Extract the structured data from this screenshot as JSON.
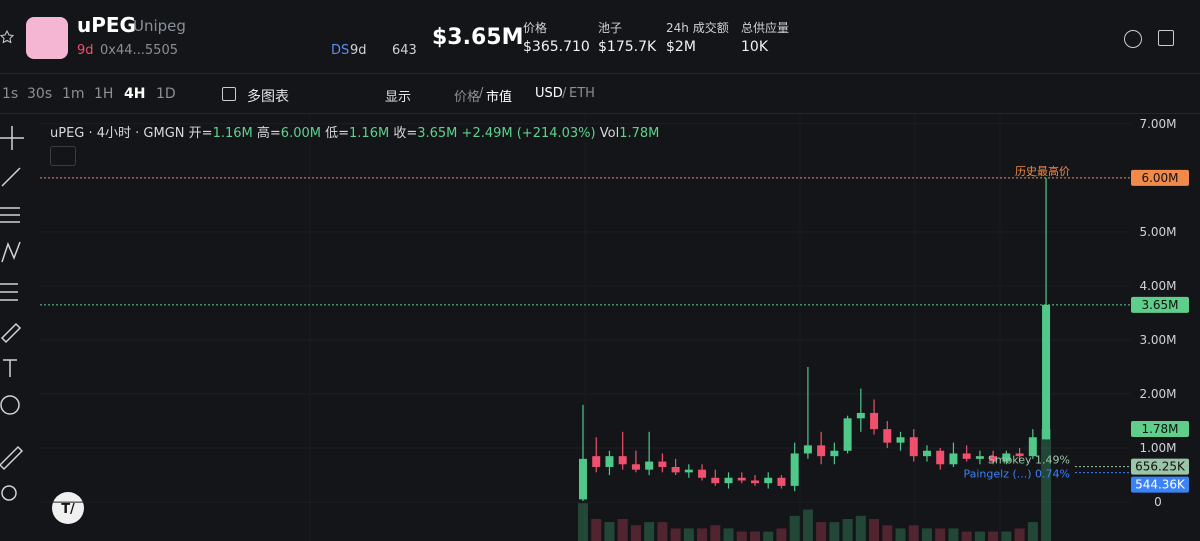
{
  "header": {
    "symbol": "uPEG",
    "name": "Unipeg",
    "age": "9d",
    "address": "0x44...5505",
    "ds_label": "DS",
    "ds_age": "9d",
    "views": "643",
    "market_cap": "$3.65M",
    "stats": [
      {
        "label": "价格",
        "value": "$365.710"
      },
      {
        "label": "池子",
        "value": "$175.7K"
      },
      {
        "label": "24h 成交额",
        "value": "$2M"
      },
      {
        "label": "总供应量",
        "value": "10K"
      }
    ]
  },
  "toolbar": {
    "intervals": [
      "1s",
      "30s",
      "1m",
      "1H",
      "4H",
      "1D"
    ],
    "active_interval": "4H",
    "multi_chart": "多图表",
    "display": "显示",
    "price": "价格",
    "slash": "/",
    "mcap": "市值",
    "usd": "USD",
    "eth": "ETH"
  },
  "legend": {
    "title": "uPEG · 4小时 · GMGN",
    "open_label": "开=",
    "open": "1.16M",
    "high_label": "高=",
    "high": "6.00M",
    "low_label": "低=",
    "low": "1.16M",
    "close_label": "收=",
    "close": "3.65M",
    "change": "+2.49M (+214.03%)",
    "vol_label": "Vol",
    "vol": "1.78M"
  },
  "chart_data": {
    "type": "candlestick",
    "open": [
      0.05,
      0.85,
      0.65,
      0.85,
      0.7,
      0.6,
      0.75,
      0.65,
      0.55,
      0.6,
      0.45,
      0.35,
      0.45,
      0.4,
      0.35,
      0.45,
      0.3,
      0.9,
      1.05,
      0.85,
      0.95,
      1.55,
      1.65,
      1.35,
      1.1,
      1.2,
      0.85,
      0.95,
      0.7,
      0.9,
      0.8,
      0.85,
      0.75,
      0.9,
      0.85,
      1.16
    ],
    "high": [
      1.8,
      1.2,
      0.95,
      1.3,
      0.95,
      1.3,
      0.9,
      0.8,
      0.7,
      0.7,
      0.6,
      0.55,
      0.55,
      0.5,
      0.55,
      0.5,
      1.1,
      2.5,
      1.3,
      1.1,
      1.6,
      2.1,
      1.9,
      1.5,
      1.3,
      1.35,
      1.05,
      1.0,
      1.1,
      1.05,
      0.95,
      0.95,
      0.95,
      1.0,
      1.35,
      6.0
    ],
    "low": [
      0.02,
      0.55,
      0.5,
      0.6,
      0.55,
      0.5,
      0.55,
      0.5,
      0.45,
      0.4,
      0.3,
      0.25,
      0.35,
      0.3,
      0.25,
      0.25,
      0.2,
      0.8,
      0.7,
      0.7,
      0.9,
      1.3,
      1.25,
      1.0,
      0.95,
      0.75,
      0.75,
      0.6,
      0.65,
      0.75,
      0.7,
      0.7,
      0.7,
      0.75,
      0.8,
      1.16
    ],
    "close": [
      0.8,
      0.65,
      0.85,
      0.7,
      0.6,
      0.75,
      0.65,
      0.55,
      0.6,
      0.45,
      0.35,
      0.45,
      0.4,
      0.35,
      0.45,
      0.3,
      0.9,
      1.05,
      0.85,
      0.95,
      1.55,
      1.65,
      1.35,
      1.1,
      1.2,
      0.85,
      0.95,
      0.7,
      0.9,
      0.8,
      0.85,
      0.75,
      0.9,
      0.85,
      1.2,
      3.65
    ],
    "volume": [
      0.6,
      0.35,
      0.3,
      0.35,
      0.25,
      0.3,
      0.3,
      0.2,
      0.2,
      0.2,
      0.25,
      0.2,
      0.15,
      0.15,
      0.15,
      0.2,
      0.4,
      0.5,
      0.3,
      0.3,
      0.35,
      0.4,
      0.35,
      0.25,
      0.2,
      0.25,
      0.2,
      0.2,
      0.2,
      0.15,
      0.15,
      0.15,
      0.15,
      0.2,
      0.3,
      1.78
    ],
    "up_color": "#4fc88a",
    "down_color": "#f0506e",
    "ylim": [
      -0.72,
      7.2
    ],
    "y2lim": [
      0,
      6.8
    ],
    "yticks": [
      0,
      {
        "value": 1,
        "label": "1.00M"
      },
      {
        "value": 2,
        "label": "2.00M"
      },
      {
        "value": 3,
        "label": "3.00M"
      },
      {
        "value": 4,
        "label": "4.00M"
      },
      {
        "value": 5,
        "label": "5.00M"
      },
      {
        "value": 6,
        "label": "6.00M"
      },
      {
        "value": 7,
        "label": "7.00M"
      }
    ],
    "markers": [
      {
        "value": 6,
        "label": "6.00M",
        "note": "历史最高价",
        "color": "#f08a4b",
        "full_line": true
      },
      {
        "value": 3.65,
        "label": "3.65M",
        "color": "#5fce8a",
        "full_line": true
      },
      {
        "value": 1.78,
        "label": "1.78M",
        "color": "#5fce8a",
        "axis": "y2"
      },
      {
        "value": 0.65625,
        "label": "656.25K",
        "note": "Smokey 1.49%",
        "color": "#9bc4a8"
      },
      {
        "value": 0.54436,
        "label": "544.36K",
        "note": "Paingelz (...) 0.74%",
        "color": "#3b82f6"
      }
    ]
  }
}
